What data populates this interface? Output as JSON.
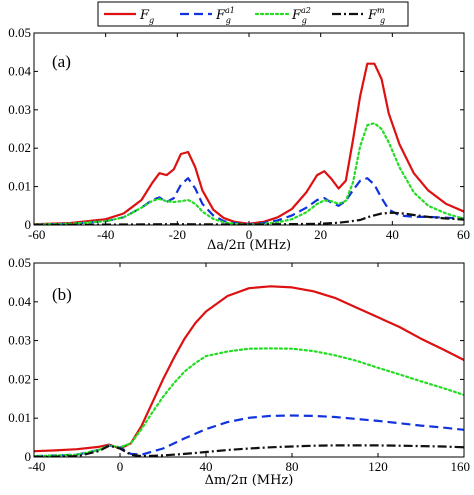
{
  "legend": [
    {
      "base": "F",
      "sup": "",
      "sub": "g",
      "color": "#dd1111",
      "dash": "solid"
    },
    {
      "base": "F",
      "sup": "a1",
      "sub": "g",
      "color": "#1133dd",
      "dash": "dashed"
    },
    {
      "base": "F",
      "sup": "a2",
      "sub": "g",
      "color": "#22dd22",
      "dash": "dotted"
    },
    {
      "base": "F",
      "sup": "m",
      "sub": "g",
      "color": "#111111",
      "dash": "dashdot"
    }
  ],
  "chart_data": [
    {
      "type": "line",
      "panel_label": "(a)",
      "xlabel": "Δa/2π (MHz)",
      "xlim": [
        -60,
        60
      ],
      "ylim": [
        0,
        0.05
      ],
      "xticks": [
        -60,
        -40,
        -20,
        0,
        20,
        40,
        60
      ],
      "yticks": [
        0,
        0.01,
        0.02,
        0.03,
        0.04,
        0.05
      ],
      "xtick_labels": [
        "-60",
        "-40",
        "-20",
        "0",
        "20",
        "40",
        "60"
      ],
      "ytick_labels": [
        "0",
        "0.01",
        "0.02",
        "0.03",
        "0.04",
        "0.05"
      ],
      "grid": false,
      "series": [
        {
          "legend_index": 0,
          "x": [
            -60,
            -50,
            -40,
            -35,
            -30,
            -27,
            -25,
            -23,
            -21,
            -19,
            -17,
            -15,
            -13,
            -10,
            -7,
            -4,
            0,
            4,
            8,
            12,
            16,
            19,
            21,
            23,
            25,
            27,
            29,
            31,
            33,
            35,
            37,
            39,
            42,
            46,
            50,
            55,
            60
          ],
          "y": [
            0.0002,
            0.0005,
            0.0015,
            0.003,
            0.0065,
            0.011,
            0.0135,
            0.013,
            0.0145,
            0.0185,
            0.019,
            0.015,
            0.009,
            0.004,
            0.0018,
            0.0008,
            0.0003,
            0.0008,
            0.002,
            0.0042,
            0.0085,
            0.013,
            0.014,
            0.012,
            0.0095,
            0.0115,
            0.022,
            0.0335,
            0.042,
            0.042,
            0.038,
            0.029,
            0.021,
            0.0135,
            0.009,
            0.0055,
            0.0035
          ]
        },
        {
          "legend_index": 1,
          "x": [
            -60,
            -50,
            -40,
            -35,
            -30,
            -27,
            -25,
            -23,
            -21,
            -19,
            -17,
            -15,
            -13,
            -10,
            -7,
            -4,
            0,
            4,
            8,
            12,
            16,
            19,
            21,
            23,
            25,
            27,
            29,
            31,
            33,
            35,
            37,
            39,
            42,
            46,
            50,
            55,
            60
          ],
          "y": [
            0.0001,
            0.0003,
            0.001,
            0.002,
            0.0045,
            0.0065,
            0.0072,
            0.006,
            0.007,
            0.0105,
            0.0122,
            0.0095,
            0.0055,
            0.0025,
            0.001,
            0.0005,
            0.0002,
            0.0005,
            0.0012,
            0.0025,
            0.0045,
            0.0065,
            0.007,
            0.0058,
            0.005,
            0.0063,
            0.009,
            0.0115,
            0.0122,
            0.0105,
            0.007,
            0.004,
            0.0025,
            0.0021,
            0.0021,
            0.0019,
            0.0017
          ]
        },
        {
          "legend_index": 2,
          "x": [
            -60,
            -50,
            -40,
            -35,
            -30,
            -27,
            -25,
            -23,
            -21,
            -19,
            -17,
            -15,
            -13,
            -10,
            -7,
            -4,
            0,
            4,
            8,
            12,
            16,
            19,
            21,
            23,
            25,
            27,
            29,
            31,
            33,
            35,
            37,
            39,
            42,
            46,
            50,
            55,
            60
          ],
          "y": [
            0.0001,
            0.0003,
            0.001,
            0.002,
            0.0045,
            0.0063,
            0.0068,
            0.0062,
            0.006,
            0.0062,
            0.0065,
            0.0055,
            0.0035,
            0.0016,
            0.0007,
            0.0003,
            0.0001,
            0.0003,
            0.0007,
            0.0015,
            0.0033,
            0.0055,
            0.0064,
            0.0062,
            0.0055,
            0.0063,
            0.011,
            0.0205,
            0.026,
            0.0265,
            0.025,
            0.0215,
            0.015,
            0.0085,
            0.005,
            0.003,
            0.0016
          ]
        },
        {
          "legend_index": 3,
          "x": [
            -60,
            -40,
            -20,
            0,
            20,
            25,
            28,
            31,
            34,
            37,
            40,
            43,
            46,
            50,
            55,
            60
          ],
          "y": [
            0,
            0.0001,
            0.0002,
            0.0001,
            0.0003,
            0.0006,
            0.0009,
            0.0013,
            0.0023,
            0.003,
            0.0032,
            0.003,
            0.0026,
            0.0021,
            0.0017,
            0.0014
          ]
        }
      ]
    },
    {
      "type": "line",
      "panel_label": "(b)",
      "xlabel": "Δm/2π (MHz)",
      "xlim": [
        -40,
        160
      ],
      "ylim": [
        0,
        0.05
      ],
      "xticks": [
        -40,
        0,
        40,
        80,
        120,
        160
      ],
      "yticks": [
        0,
        0.01,
        0.02,
        0.03,
        0.04,
        0.05
      ],
      "xtick_labels": [
        "-40",
        "0",
        "40",
        "80",
        "120",
        "160"
      ],
      "ytick_labels": [
        "0",
        "0.01",
        "0.02",
        "0.03",
        "0.04",
        "0.05"
      ],
      "grid": false,
      "series": [
        {
          "legend_index": 0,
          "x": [
            -40,
            -30,
            -20,
            -10,
            -5,
            0,
            5,
            10,
            15,
            20,
            25,
            30,
            35,
            40,
            50,
            60,
            70,
            80,
            90,
            100,
            110,
            120,
            130,
            140,
            150,
            160
          ],
          "y": [
            0.0015,
            0.0017,
            0.002,
            0.0026,
            0.0032,
            0.0022,
            0.0035,
            0.008,
            0.014,
            0.02,
            0.0255,
            0.0305,
            0.0345,
            0.0375,
            0.0415,
            0.0435,
            0.044,
            0.0437,
            0.0427,
            0.041,
            0.0385,
            0.036,
            0.0335,
            0.0305,
            0.0278,
            0.025
          ]
        },
        {
          "legend_index": 1,
          "x": [
            -40,
            -20,
            -10,
            -5,
            0,
            5,
            10,
            20,
            30,
            40,
            50,
            60,
            70,
            80,
            90,
            100,
            110,
            120,
            130,
            140,
            150,
            160
          ],
          "y": [
            0.0002,
            0.0006,
            0.0018,
            0.003,
            0.0025,
            0.0008,
            0.0006,
            0.0022,
            0.0048,
            0.0072,
            0.009,
            0.0101,
            0.0106,
            0.0107,
            0.0106,
            0.0103,
            0.0098,
            0.0093,
            0.0087,
            0.0081,
            0.0076,
            0.007
          ]
        },
        {
          "legend_index": 2,
          "x": [
            -40,
            -20,
            -10,
            -5,
            0,
            5,
            10,
            15,
            20,
            25,
            30,
            35,
            40,
            50,
            60,
            70,
            80,
            90,
            100,
            110,
            120,
            130,
            140,
            150,
            160
          ],
          "y": [
            0.0002,
            0.0006,
            0.0018,
            0.003,
            0.0025,
            0.0035,
            0.0072,
            0.0115,
            0.0155,
            0.019,
            0.022,
            0.0242,
            0.026,
            0.0272,
            0.0279,
            0.028,
            0.0279,
            0.0273,
            0.0262,
            0.0248,
            0.023,
            0.0213,
            0.0195,
            0.0178,
            0.016
          ]
        },
        {
          "legend_index": 3,
          "x": [
            -40,
            -20,
            -10,
            -5,
            0,
            5,
            10,
            20,
            30,
            40,
            50,
            60,
            70,
            80,
            90,
            100,
            110,
            120,
            130,
            140,
            150,
            160
          ],
          "y": [
            0,
            0.0002,
            0.0015,
            0.0029,
            0.0022,
            0.0006,
            0.0002,
            0.0004,
            0.0008,
            0.0013,
            0.0018,
            0.0022,
            0.0025,
            0.0027,
            0.0029,
            0.003,
            0.003,
            0.003,
            0.0029,
            0.0028,
            0.0027,
            0.0025
          ]
        }
      ]
    }
  ]
}
